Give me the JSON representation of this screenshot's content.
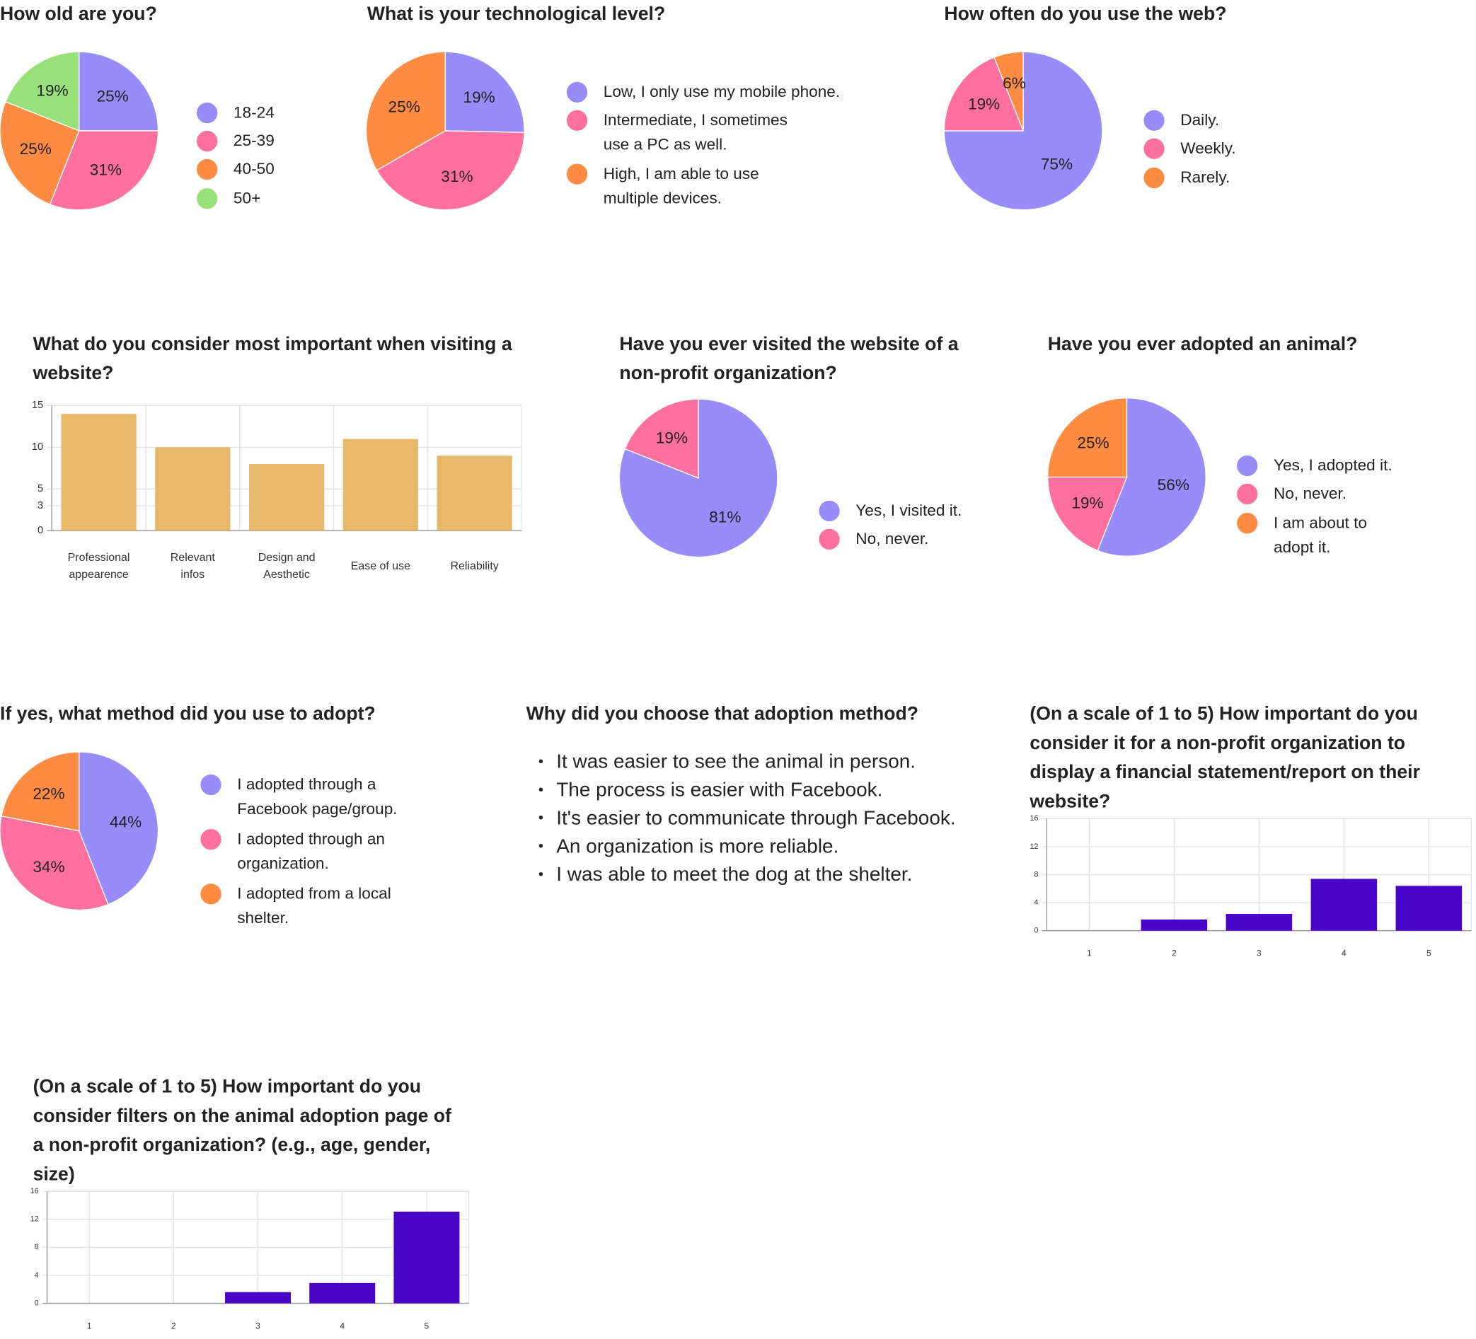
{
  "chart_data": [
    {
      "type": "pie",
      "title": "How old are you?",
      "categories": [
        "18-24",
        "25-39",
        "40-50",
        "50+"
      ],
      "values": [
        25,
        31,
        25,
        19
      ],
      "value_labels": [
        "25%",
        "31%",
        "25%",
        "19%"
      ],
      "colors": [
        "#978cf9",
        "#ff6fa0",
        "#ff8c42",
        "#98e07a"
      ]
    },
    {
      "type": "pie",
      "title": "What is your technological level?",
      "categories": [
        "Low, I only use my mobile phone.",
        "Intermediate, I sometimes use a PC as well.",
        "High, I am able to use multiple devices."
      ],
      "values": [
        19,
        31,
        25
      ],
      "value_labels": [
        "19%",
        "31%",
        "25%"
      ],
      "colors": [
        "#978cf9",
        "#ff6fa0",
        "#ff8c42"
      ]
    },
    {
      "type": "pie",
      "title": "How often do you use the web?",
      "categories": [
        "Daily.",
        "Weekly.",
        "Rarely."
      ],
      "values": [
        75,
        19,
        6
      ],
      "value_labels": [
        "75%",
        "19%",
        "6%"
      ],
      "colors": [
        "#978cf9",
        "#ff6fa0",
        "#ff8c42"
      ]
    },
    {
      "type": "bar",
      "title": "What do you consider most important when visiting a website?",
      "categories": [
        "Professional appearence",
        "Relevant infos",
        "Design and Aesthetic",
        "Ease of use",
        "Reliability"
      ],
      "values": [
        14,
        10,
        8,
        11,
        9
      ],
      "color": "#e8b86a",
      "ylim": [
        0,
        15
      ],
      "yticks": [
        0,
        3,
        5,
        10,
        15
      ],
      "grid": true
    },
    {
      "type": "pie",
      "title": "Have you ever visited the website of a non-profit organization?",
      "categories": [
        "Yes, I visited it.",
        "No, never."
      ],
      "values": [
        81,
        19
      ],
      "value_labels": [
        "81%",
        "19%"
      ],
      "colors": [
        "#978cf9",
        "#ff6fa0"
      ]
    },
    {
      "type": "pie",
      "title": "Have you ever adopted an animal?",
      "categories": [
        "Yes, I adopted it.",
        "No, never.",
        "I am about to adopt it."
      ],
      "values": [
        56,
        19,
        25
      ],
      "value_labels": [
        "56%",
        "19%",
        "25%"
      ],
      "colors": [
        "#978cf9",
        "#ff6fa0",
        "#ff8c42"
      ]
    },
    {
      "type": "pie",
      "title": "If yes, what method did you use to adopt?",
      "categories": [
        "I adopted through a Facebook page/group.",
        "I adopted through an organization.",
        "I adopted from a local shelter."
      ],
      "values": [
        44,
        34,
        22
      ],
      "value_labels": [
        "44%",
        "34%",
        "22%"
      ],
      "colors": [
        "#978cf9",
        "#ff6fa0",
        "#ff8c42"
      ]
    },
    {
      "type": "bar",
      "title": "(On a scale of 1 to 5) How important do you consider it for a non-profit organization to display a financial statement/report on their website?",
      "categories": [
        "1",
        "2",
        "3",
        "4",
        "5"
      ],
      "values": [
        0,
        1.6,
        2.4,
        7.4,
        6.4
      ],
      "color": "#4a06c6",
      "ylim": [
        0,
        16
      ],
      "yticks": [
        0,
        4,
        8,
        12,
        16
      ],
      "grid": true
    },
    {
      "type": "bar",
      "title": "(On a scale of 1 to 5) How important do you consider filters on the animal adoption page of a non-profit organization? (e.g., age, gender, size)",
      "categories": [
        "1",
        "2",
        "3",
        "4",
        "5"
      ],
      "values": [
        0,
        0,
        1.6,
        2.9,
        13.1
      ],
      "color": "#4a06c6",
      "ylim": [
        0,
        16
      ],
      "yticks": [
        0,
        4,
        8,
        12,
        16
      ],
      "grid": true
    }
  ],
  "adoption_reasons": {
    "title": "Why did you choose that adoption method?",
    "items": [
      "It was easier to see the animal in person.",
      "The process is easier with Facebook.",
      "It's easier to communicate through Facebook.",
      "An organization is more reliable.",
      "I was able to meet the dog at the shelter."
    ]
  }
}
